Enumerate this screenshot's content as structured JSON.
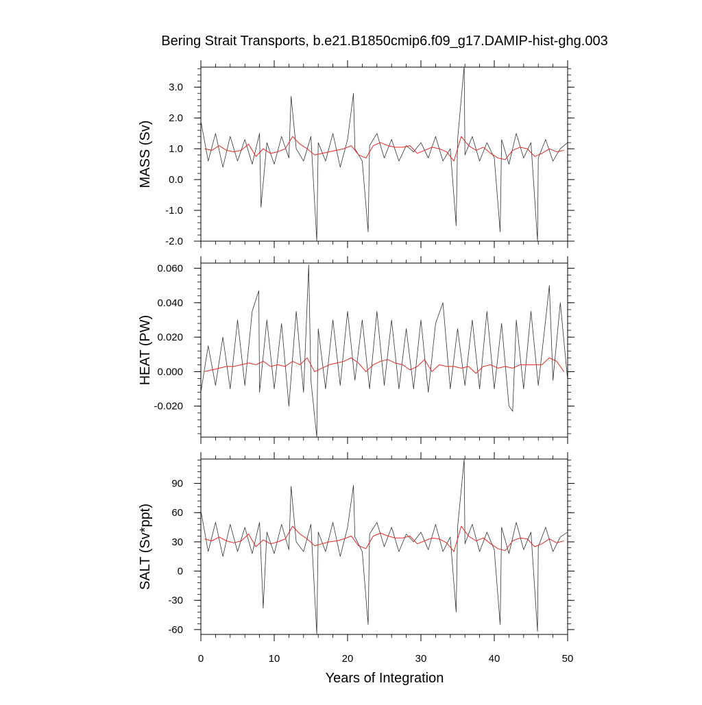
{
  "title": "Bering Strait Transports, b.e21.B1850cmip6.f09_g17.DAMIP-hist-ghg.003",
  "xlabel": "Years of Integration",
  "colors": {
    "monthly": "#333333",
    "annual": "#e8261f",
    "axes": "#000000"
  },
  "chart_data": [
    {
      "type": "line",
      "name": "mass",
      "ylabel": "MASS (Sv)",
      "xlim": [
        0,
        50
      ],
      "ylim": [
        -2.0,
        3.65
      ],
      "xticks": [
        0,
        10,
        20,
        30,
        40,
        50
      ],
      "yticks": [
        -2.0,
        -1.0,
        0.0,
        1.0,
        2.0,
        3.0
      ],
      "ytick_labels": [
        "-2.0",
        "-1.0",
        "0.0",
        "1.0",
        "2.0",
        "3.0"
      ],
      "series": [
        {
          "style": "monthly",
          "x": [
            0.0,
            1.0,
            2.0,
            3.0,
            4.0,
            5.0,
            6.0,
            7.0,
            8.0,
            8.2,
            9.0,
            10.0,
            11.0,
            12.0,
            12.3,
            13.0,
            14.0,
            15.0,
            15.8,
            16.0,
            17.0,
            18.0,
            19.0,
            20.0,
            20.8,
            21.0,
            22.0,
            22.8,
            23.0,
            24.0,
            25.0,
            26.0,
            27.0,
            28.0,
            29.0,
            30.0,
            31.0,
            32.0,
            33.0,
            34.0,
            34.8,
            35.0,
            35.9,
            36.0,
            37.0,
            38.0,
            39.0,
            40.0,
            40.8,
            41.0,
            42.0,
            43.0,
            44.0,
            45.0,
            45.9,
            46.0,
            47.0,
            48.0,
            49.0,
            50.0
          ],
          "y": [
            1.9,
            0.6,
            1.5,
            0.4,
            1.4,
            0.6,
            1.3,
            0.5,
            1.5,
            -0.9,
            1.2,
            0.5,
            1.4,
            0.7,
            2.7,
            1.0,
            0.6,
            1.4,
            -2.0,
            1.2,
            0.6,
            1.5,
            0.4,
            1.3,
            2.8,
            1.0,
            0.6,
            -1.7,
            1.1,
            1.5,
            0.7,
            1.3,
            0.6,
            1.1,
            0.9,
            1.2,
            0.7,
            1.4,
            0.6,
            1.0,
            -1.5,
            1.3,
            3.7,
            0.8,
            1.4,
            0.6,
            1.2,
            0.7,
            -1.7,
            1.3,
            0.5,
            1.5,
            0.7,
            1.2,
            -2.0,
            0.7,
            1.3,
            0.6,
            1.0,
            1.2
          ]
        },
        {
          "style": "annual",
          "x": [
            0.5,
            1.5,
            2.5,
            3.5,
            4.5,
            5.5,
            6.5,
            7.5,
            8.5,
            9.5,
            10.5,
            11.5,
            12.5,
            13.5,
            14.5,
            15.5,
            16.5,
            17.5,
            18.5,
            19.5,
            20.5,
            21.5,
            22.5,
            23.5,
            24.5,
            25.5,
            26.5,
            27.5,
            28.5,
            29.5,
            30.5,
            31.5,
            32.5,
            33.5,
            34.5,
            35.5,
            36.5,
            37.5,
            38.5,
            39.5,
            40.5,
            41.5,
            42.5,
            43.5,
            44.5,
            45.5,
            46.5,
            47.5,
            48.5,
            49.5
          ],
          "y": [
            1.0,
            0.95,
            1.1,
            0.95,
            0.9,
            0.95,
            1.15,
            0.75,
            1.0,
            0.85,
            0.9,
            1.0,
            1.4,
            1.15,
            1.0,
            0.8,
            0.85,
            0.9,
            0.95,
            1.0,
            1.1,
            0.8,
            0.7,
            1.1,
            1.2,
            1.1,
            1.05,
            1.05,
            1.1,
            0.85,
            0.95,
            1.05,
            1.0,
            0.9,
            0.6,
            1.4,
            1.1,
            0.95,
            1.05,
            0.85,
            0.7,
            0.65,
            0.95,
            1.05,
            1.0,
            0.75,
            0.85,
            1.0,
            0.9,
            0.95
          ]
        }
      ]
    },
    {
      "type": "line",
      "name": "heat",
      "ylabel": "HEAT (PW)",
      "xlim": [
        0,
        50
      ],
      "ylim": [
        -0.038,
        0.063
      ],
      "xticks": [
        0,
        10,
        20,
        30,
        40,
        50
      ],
      "yticks": [
        -0.02,
        0.0,
        0.02,
        0.04,
        0.06
      ],
      "ytick_labels": [
        "-0.020",
        "0.000",
        "0.020",
        "0.040",
        "0.060"
      ],
      "series": [
        {
          "style": "monthly",
          "x": [
            0.0,
            1.0,
            2.0,
            3.0,
            4.0,
            5.0,
            6.0,
            7.0,
            7.9,
            8.0,
            9.0,
            10.0,
            11.0,
            12.0,
            13.0,
            14.0,
            14.7,
            15.0,
            15.8,
            16.0,
            17.0,
            18.0,
            19.0,
            20.0,
            21.0,
            22.0,
            23.0,
            24.0,
            25.0,
            26.0,
            27.0,
            28.0,
            29.0,
            30.0,
            31.0,
            32.0,
            33.0,
            34.0,
            35.0,
            36.0,
            37.0,
            38.0,
            39.0,
            40.0,
            41.0,
            42.0,
            42.5,
            43.0,
            44.0,
            45.0,
            46.0,
            47.0,
            47.5,
            48.0,
            49.0,
            50.0
          ],
          "y": [
            -0.012,
            0.015,
            -0.008,
            0.02,
            -0.01,
            0.03,
            -0.008,
            0.035,
            0.047,
            -0.012,
            0.03,
            -0.01,
            0.028,
            -0.02,
            0.035,
            -0.012,
            0.062,
            -0.005,
            -0.038,
            0.025,
            -0.01,
            0.03,
            -0.008,
            0.035,
            -0.005,
            0.03,
            -0.01,
            0.035,
            -0.008,
            0.03,
            -0.01,
            0.025,
            -0.01,
            0.03,
            -0.012,
            0.028,
            0.04,
            -0.01,
            0.025,
            -0.008,
            0.03,
            -0.01,
            0.035,
            -0.01,
            0.028,
            -0.02,
            -0.023,
            0.03,
            -0.01,
            0.035,
            -0.008,
            0.03,
            0.05,
            -0.005,
            0.04,
            -0.005
          ]
        },
        {
          "style": "annual",
          "x": [
            0.5,
            1.5,
            2.5,
            3.5,
            4.5,
            5.5,
            6.5,
            7.5,
            8.5,
            9.5,
            10.5,
            11.5,
            12.5,
            13.5,
            14.5,
            15.5,
            16.5,
            17.5,
            18.5,
            19.5,
            20.5,
            21.5,
            22.5,
            23.5,
            24.5,
            25.5,
            26.5,
            27.5,
            28.5,
            29.5,
            30.5,
            31.5,
            32.5,
            33.5,
            34.5,
            35.5,
            36.5,
            37.5,
            38.5,
            39.5,
            40.5,
            41.5,
            42.5,
            43.5,
            44.5,
            45.5,
            46.5,
            47.5,
            48.5,
            49.5
          ],
          "y": [
            0.0,
            0.001,
            0.002,
            0.003,
            0.003,
            0.004,
            0.005,
            0.004,
            0.006,
            0.003,
            0.004,
            0.003,
            0.006,
            0.004,
            0.008,
            0.0,
            0.002,
            0.004,
            0.005,
            0.006,
            0.008,
            0.005,
            0.0,
            0.004,
            0.006,
            0.007,
            0.005,
            0.004,
            0.001,
            0.003,
            0.007,
            0.0,
            0.004,
            0.003,
            0.003,
            0.002,
            0.003,
            -0.001,
            0.003,
            0.004,
            0.002,
            0.003,
            0.002,
            0.004,
            0.004,
            0.004,
            0.004,
            0.008,
            0.006,
            0.0
          ]
        }
      ]
    },
    {
      "type": "line",
      "name": "salt",
      "ylabel": "SALT (Sv*ppt)",
      "xlim": [
        0,
        50
      ],
      "ylim": [
        -65,
        115
      ],
      "xticks": [
        0,
        10,
        20,
        30,
        40,
        50
      ],
      "xtick_labels": [
        "0",
        "10",
        "20",
        "30",
        "40",
        "50"
      ],
      "yticks": [
        -60,
        -30,
        0,
        30,
        60,
        90
      ],
      "ytick_labels": [
        "-60",
        "-30",
        "0",
        "30",
        "60",
        "90"
      ],
      "series": [
        {
          "style": "monthly",
          "x": [
            0.0,
            1.0,
            2.0,
            3.0,
            4.0,
            5.0,
            6.0,
            7.0,
            8.0,
            8.5,
            9.0,
            10.0,
            11.0,
            12.0,
            12.3,
            13.0,
            14.0,
            15.0,
            15.8,
            16.0,
            17.0,
            18.0,
            19.0,
            20.0,
            20.8,
            21.0,
            22.0,
            22.8,
            23.0,
            24.0,
            25.0,
            26.0,
            27.0,
            28.0,
            29.0,
            30.0,
            31.0,
            32.0,
            33.0,
            34.0,
            34.8,
            35.0,
            35.9,
            36.0,
            37.0,
            38.0,
            39.0,
            40.0,
            40.8,
            41.0,
            42.0,
            43.0,
            44.0,
            45.0,
            45.9,
            46.0,
            47.0,
            48.0,
            49.0,
            50.0
          ],
          "y": [
            62,
            20,
            50,
            15,
            48,
            20,
            45,
            18,
            50,
            -38,
            40,
            18,
            48,
            22,
            87,
            30,
            20,
            48,
            -65,
            40,
            20,
            50,
            15,
            45,
            88,
            35,
            20,
            -55,
            38,
            50,
            25,
            45,
            20,
            38,
            30,
            40,
            22,
            48,
            20,
            35,
            -42,
            45,
            115,
            28,
            48,
            20,
            40,
            22,
            -55,
            45,
            18,
            50,
            22,
            40,
            -62,
            25,
            45,
            20,
            35,
            40
          ]
        },
        {
          "style": "annual",
          "x": [
            0.5,
            1.5,
            2.5,
            3.5,
            4.5,
            5.5,
            6.5,
            7.5,
            8.5,
            9.5,
            10.5,
            11.5,
            12.5,
            13.5,
            14.5,
            15.5,
            16.5,
            17.5,
            18.5,
            19.5,
            20.5,
            21.5,
            22.5,
            23.5,
            24.5,
            25.5,
            26.5,
            27.5,
            28.5,
            29.5,
            30.5,
            31.5,
            32.5,
            33.5,
            34.5,
            35.5,
            36.5,
            37.5,
            38.5,
            39.5,
            40.5,
            41.5,
            42.5,
            43.5,
            44.5,
            45.5,
            46.5,
            47.5,
            48.5,
            49.5
          ],
          "y": [
            33,
            31,
            35,
            31,
            29,
            31,
            38,
            25,
            32,
            28,
            30,
            33,
            46,
            38,
            33,
            26,
            28,
            30,
            31,
            33,
            36,
            26,
            23,
            36,
            39,
            36,
            34,
            34,
            36,
            28,
            31,
            34,
            33,
            29,
            20,
            46,
            36,
            31,
            34,
            28,
            23,
            21,
            31,
            34,
            33,
            25,
            28,
            33,
            29,
            31
          ]
        }
      ]
    }
  ]
}
